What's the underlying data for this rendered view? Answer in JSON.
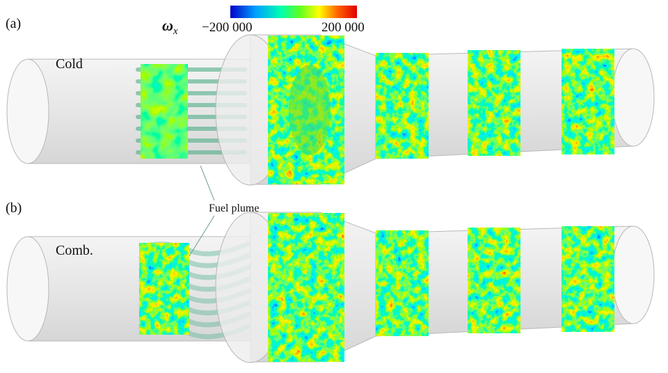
{
  "colorbar": {
    "symbol": "ω",
    "subscript": "x",
    "min_label": "−200 000",
    "max_label": "200 000"
  },
  "panels": [
    {
      "label": "(a)",
      "case": "Cold"
    },
    {
      "label": "(b)",
      "case": "Comb."
    }
  ],
  "annotation": "Fuel plume"
}
